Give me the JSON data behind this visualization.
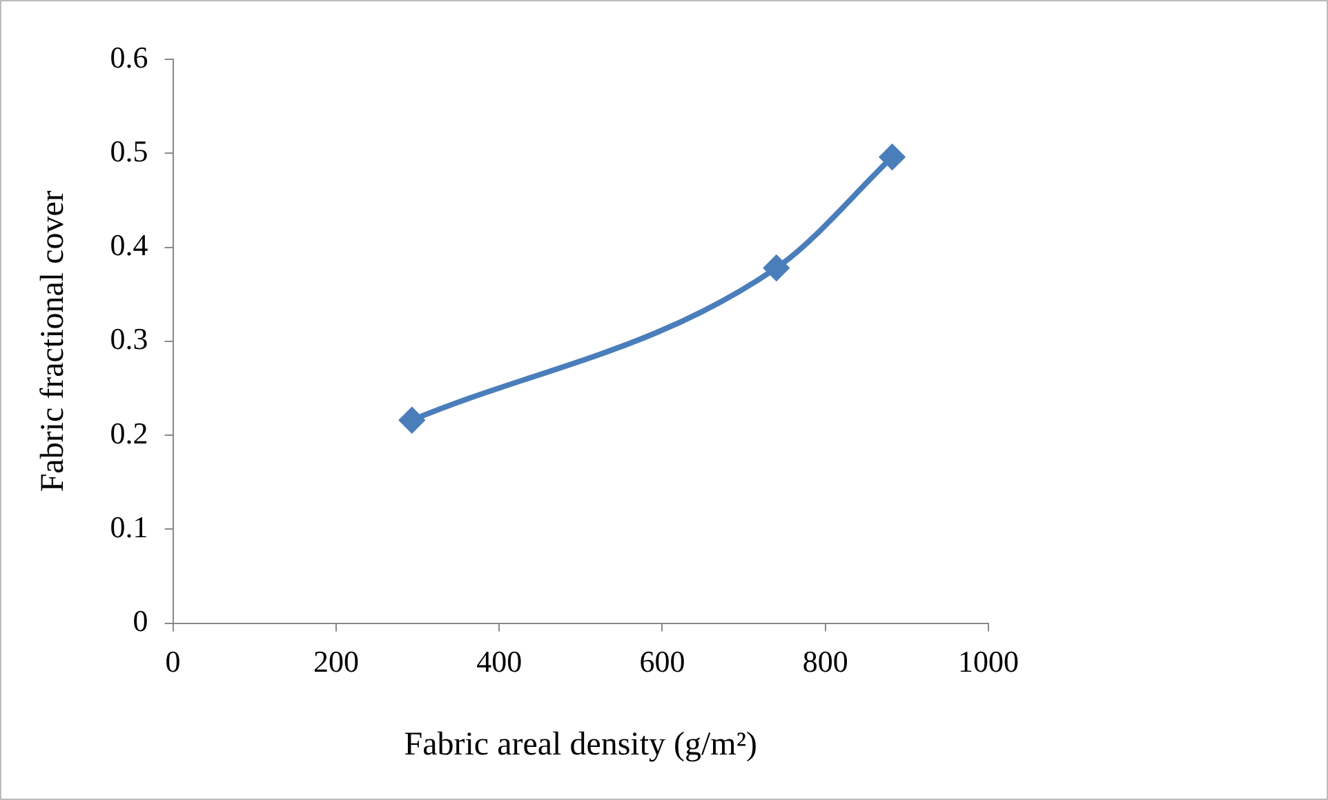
{
  "chart_data": {
    "type": "line",
    "xlabel": "Fabric areal density (g/m²)",
    "ylabel": "Fabric fractional cover",
    "x": [
      293,
      740,
      882
    ],
    "series": [
      {
        "color": "#4a7ebb",
        "values": [
          0.216,
          0.378,
          0.496
        ]
      }
    ],
    "xlim": [
      0,
      1000
    ],
    "xticks": [
      0,
      200,
      400,
      600,
      800,
      1000
    ],
    "ylim": [
      0,
      0.6
    ],
    "yticks": [
      0,
      0.1,
      0.2,
      0.3,
      0.4,
      0.5,
      0.6
    ],
    "grid": false,
    "legend": false,
    "marker": "diamond",
    "line_style": "solid"
  }
}
